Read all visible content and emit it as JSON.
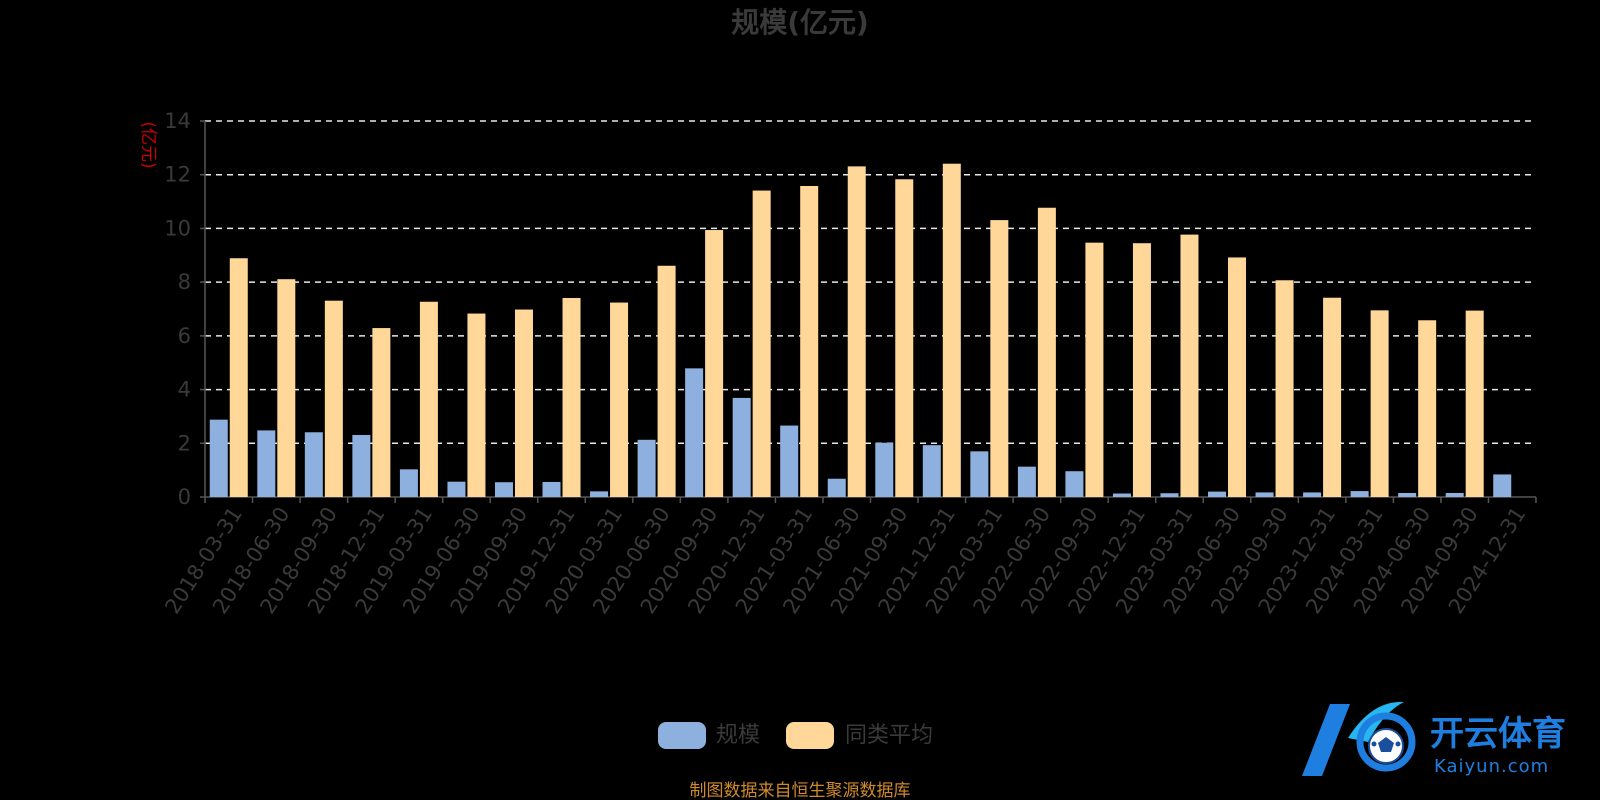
{
  "chart_data": {
    "type": "bar",
    "title": "规模(亿元)",
    "ylabel": "(亿元)",
    "ylim": [
      0,
      14
    ],
    "yticks": [
      0,
      2,
      4,
      6,
      8,
      10,
      12,
      14
    ],
    "grid": true,
    "legend_position": "bottom-center",
    "categories": [
      "2018-03-31",
      "2018-06-30",
      "2018-09-30",
      "2018-12-31",
      "2019-03-31",
      "2019-06-30",
      "2019-09-30",
      "2019-12-31",
      "2020-03-31",
      "2020-06-30",
      "2020-09-30",
      "2020-12-31",
      "2021-03-31",
      "2021-06-30",
      "2021-09-30",
      "2021-12-31",
      "2022-03-31",
      "2022-06-30",
      "2022-09-30",
      "2022-12-31",
      "2023-03-31",
      "2023-06-30",
      "2023-09-30",
      "2023-12-31",
      "2024-03-31",
      "2024-06-30",
      "2024-09-30",
      "2024-12-31"
    ],
    "series": [
      {
        "name": "规模",
        "color": "#8eb0de",
        "values": [
          2.88,
          2.48,
          2.41,
          2.31,
          1.03,
          0.57,
          0.55,
          0.56,
          0.21,
          2.13,
          4.79,
          3.69,
          2.66,
          0.68,
          2.02,
          1.93,
          1.7,
          1.13,
          0.96,
          0.13,
          0.14,
          0.2,
          0.17,
          0.17,
          0.22,
          0.15,
          0.15,
          0.84
        ]
      },
      {
        "name": "同类平均",
        "color": "#ffd899",
        "values": [
          8.89,
          8.11,
          7.31,
          6.29,
          7.27,
          6.83,
          6.98,
          7.41,
          7.24,
          8.61,
          9.94,
          11.41,
          11.58,
          12.31,
          11.83,
          12.41,
          10.31,
          10.77,
          9.47,
          9.45,
          9.77,
          8.92,
          8.07,
          7.42,
          6.95,
          6.58,
          6.94,
          null
        ]
      }
    ]
  },
  "source_note": "制图数据来自恒生聚源数据库",
  "watermark": {
    "name_cn": "开云体育",
    "name_en": "Kaiyun.com",
    "brand_color": "#1e7fe0"
  }
}
